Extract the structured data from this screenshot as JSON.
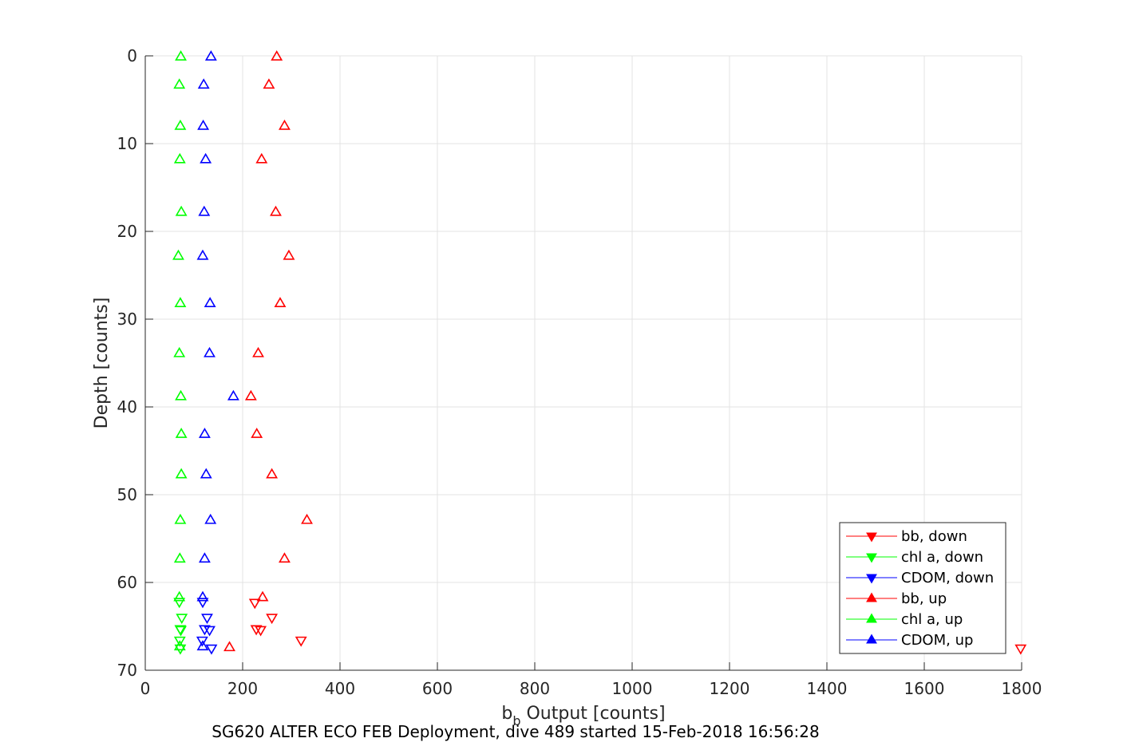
{
  "chart_data": {
    "type": "scatter",
    "xlabel_main": "b",
    "xlabel_sub": "b",
    "xlabel_rest": " Output [counts]",
    "ylabel": "Depth [counts]",
    "caption": "SG620 ALTER ECO FEB Deployment, dive 489 started 15-Feb-2018 16:56:28",
    "xlim": [
      0,
      1800
    ],
    "ylim": [
      0,
      70
    ],
    "y_reversed": true,
    "grid": true,
    "legend_position": "bottom-right",
    "xticks": [
      0,
      200,
      400,
      600,
      800,
      1000,
      1200,
      1400,
      1600,
      1800
    ],
    "xtick_labels": [
      "0",
      "200",
      "400",
      "600",
      "800",
      "1000",
      "1200",
      "1400",
      "1600",
      "1800"
    ],
    "yticks": [
      0,
      10,
      20,
      30,
      40,
      50,
      60,
      70
    ],
    "ytick_labels": [
      "0",
      "10",
      "20",
      "30",
      "40",
      "50",
      "60",
      "70"
    ],
    "series": [
      {
        "name": "bb, down",
        "color": "#ff0000",
        "marker": "triangle-down",
        "points": [
          [
            225,
            62.3
          ],
          [
            260,
            64.0
          ],
          [
            228,
            65.3
          ],
          [
            237,
            65.4
          ],
          [
            320,
            66.6
          ],
          [
            1798,
            67.5
          ]
        ]
      },
      {
        "name": "chl a, down",
        "color": "#00ff00",
        "marker": "triangle-down",
        "points": [
          [
            70,
            62.2
          ],
          [
            75,
            64.0
          ],
          [
            72,
            65.3
          ],
          [
            73,
            65.4
          ],
          [
            71,
            66.6
          ],
          [
            72,
            67.5
          ]
        ]
      },
      {
        "name": "CDOM, down",
        "color": "#0000ff",
        "marker": "triangle-down",
        "points": [
          [
            118,
            62.2
          ],
          [
            127,
            64.0
          ],
          [
            122,
            65.3
          ],
          [
            132,
            65.4
          ],
          [
            117,
            66.6
          ],
          [
            136,
            67.5
          ]
        ]
      },
      {
        "name": "bb, up",
        "color": "#ff0000",
        "marker": "triangle-up",
        "points": [
          [
            270,
            0.1
          ],
          [
            254,
            3.3
          ],
          [
            286,
            8.0
          ],
          [
            239,
            11.8
          ],
          [
            268,
            17.8
          ],
          [
            295,
            22.8
          ],
          [
            277,
            28.2
          ],
          [
            232,
            33.9
          ],
          [
            217,
            38.8
          ],
          [
            229,
            43.1
          ],
          [
            260,
            47.7
          ],
          [
            332,
            52.9
          ],
          [
            286,
            57.3
          ],
          [
            241,
            61.7
          ],
          [
            173,
            67.4
          ]
        ]
      },
      {
        "name": "chl a, up",
        "color": "#00ff00",
        "marker": "triangle-up",
        "points": [
          [
            73,
            0.1
          ],
          [
            70,
            3.3
          ],
          [
            72,
            8.0
          ],
          [
            71,
            11.8
          ],
          [
            74,
            17.8
          ],
          [
            68,
            22.8
          ],
          [
            72,
            28.2
          ],
          [
            70,
            33.9
          ],
          [
            73,
            38.8
          ],
          [
            74,
            43.1
          ],
          [
            74,
            47.7
          ],
          [
            72,
            52.9
          ],
          [
            71,
            57.3
          ],
          [
            70,
            61.7
          ],
          [
            71,
            67.3
          ]
        ]
      },
      {
        "name": "CDOM, up",
        "color": "#0000ff",
        "marker": "triangle-up",
        "points": [
          [
            135,
            0.1
          ],
          [
            120,
            3.3
          ],
          [
            119,
            8.0
          ],
          [
            124,
            11.8
          ],
          [
            121,
            17.8
          ],
          [
            118,
            22.8
          ],
          [
            133,
            28.2
          ],
          [
            132,
            33.9
          ],
          [
            181,
            38.8
          ],
          [
            122,
            43.1
          ],
          [
            125,
            47.7
          ],
          [
            134,
            52.9
          ],
          [
            122,
            57.3
          ],
          [
            118,
            61.7
          ],
          [
            118,
            67.3
          ]
        ]
      }
    ]
  }
}
